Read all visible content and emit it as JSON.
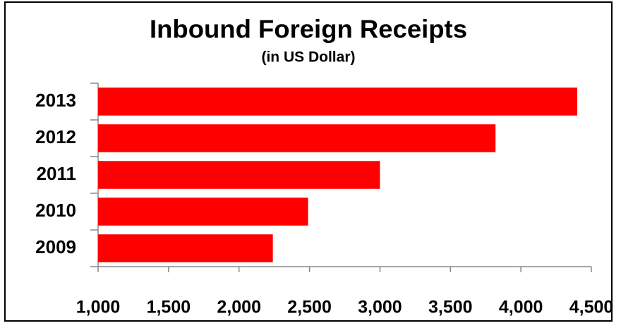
{
  "chart_data": {
    "type": "hbar",
    "title": "Inbound Foreign Receipts",
    "subtitle": "(in US Dollar)",
    "categories": [
      "2013",
      "2012",
      "2011",
      "2010",
      "2009"
    ],
    "values": [
      4400,
      3820,
      3000,
      2490,
      2240
    ],
    "color": "#ff0000",
    "xlim": [
      1000,
      4500
    ],
    "xticks": [
      {
        "value": 1000,
        "label": "1,000"
      },
      {
        "value": 1500,
        "label": "1,500"
      },
      {
        "value": 2000,
        "label": "2,000"
      },
      {
        "value": 2500,
        "label": "2,500"
      },
      {
        "value": 3000,
        "label": "3,000"
      },
      {
        "value": 3500,
        "label": "3,500"
      },
      {
        "value": 4000,
        "label": "4,000"
      },
      {
        "value": 4500,
        "label": "4,500"
      }
    ],
    "grid": false
  }
}
